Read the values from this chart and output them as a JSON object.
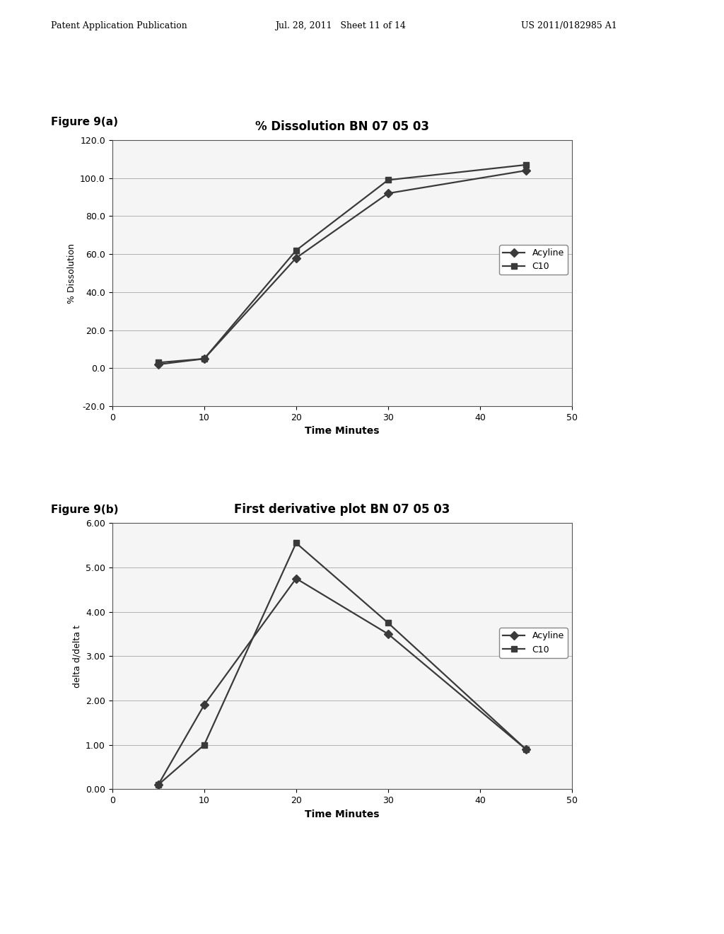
{
  "fig9a": {
    "title": "% Dissolution BN 07 05 03",
    "xlabel": "Time Minutes",
    "ylabel": "% Dissolution",
    "ylim": [
      -20.0,
      120.0
    ],
    "xlim": [
      0,
      50
    ],
    "yticks": [
      -20.0,
      0.0,
      20.0,
      40.0,
      60.0,
      80.0,
      100.0,
      120.0
    ],
    "xticks": [
      0,
      10,
      20,
      30,
      40,
      50
    ],
    "acyline_x": [
      5,
      10,
      20,
      30,
      45
    ],
    "acyline_y": [
      2.0,
      5.0,
      58.0,
      92.0,
      104.0
    ],
    "c10_x": [
      5,
      10,
      20,
      30,
      45
    ],
    "c10_y": [
      3.0,
      5.0,
      62.0,
      99.0,
      107.0
    ],
    "legend_acyline": "Acyline",
    "legend_c10": "C10"
  },
  "fig9b": {
    "title": "First derivative plot BN 07 05 03",
    "xlabel": "Time Minutes",
    "ylabel": "delta d/delta t",
    "ylim": [
      0.0,
      6.0
    ],
    "xlim": [
      0,
      50
    ],
    "yticks": [
      0.0,
      1.0,
      2.0,
      3.0,
      4.0,
      5.0,
      6.0
    ],
    "xticks": [
      0,
      10,
      20,
      30,
      40,
      50
    ],
    "acyline_x": [
      5,
      10,
      20,
      30,
      45
    ],
    "acyline_y": [
      0.1,
      1.9,
      4.75,
      3.5,
      0.9
    ],
    "c10_x": [
      5,
      10,
      20,
      30,
      45
    ],
    "c10_y": [
      0.1,
      1.0,
      5.55,
      3.75,
      0.9
    ],
    "legend_acyline": "Acyline",
    "legend_c10": "C10"
  },
  "header_left": "Patent Application Publication",
  "header_mid": "Jul. 28, 2011   Sheet 11 of 14",
  "header_right": "US 2011/0182985 A1",
  "fig9a_label": "Figure 9(a)",
  "fig9b_label": "Figure 9(b)",
  "line_color": "#3a3a3a",
  "marker_diamond": "D",
  "marker_square": "s",
  "marker_size": 6,
  "line_width": 1.6,
  "grid_color": "#b0b0b0",
  "bg_color": "#ffffff",
  "chart_bg": "#f5f5f5"
}
